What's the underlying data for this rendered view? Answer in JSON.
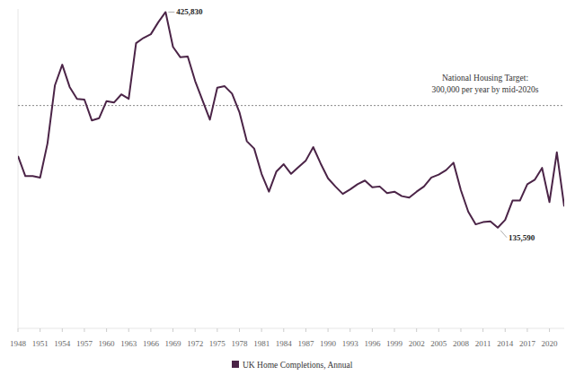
{
  "chart_data": {
    "type": "line",
    "x": [
      1948,
      1949,
      1950,
      1951,
      1952,
      1953,
      1954,
      1955,
      1956,
      1957,
      1958,
      1959,
      1960,
      1961,
      1962,
      1963,
      1964,
      1965,
      1966,
      1967,
      1968,
      1969,
      1970,
      1971,
      1972,
      1973,
      1974,
      1975,
      1976,
      1977,
      1978,
      1979,
      1980,
      1981,
      1982,
      1983,
      1984,
      1985,
      1986,
      1987,
      1988,
      1989,
      1990,
      1991,
      1992,
      1993,
      1994,
      1995,
      1996,
      1997,
      1998,
      1999,
      2000,
      2001,
      2002,
      2003,
      2004,
      2005,
      2006,
      2007,
      2008,
      2009,
      2010,
      2011,
      2012,
      2013,
      2014,
      2015,
      2016,
      2017,
      2018,
      2019,
      2020,
      2021,
      2022
    ],
    "series": [
      {
        "name": "UK Home Completions, Annual",
        "color": "#4b2447",
        "values": [
          232000,
          205000,
          205000,
          203000,
          249000,
          327000,
          355000,
          325000,
          309000,
          308000,
          280000,
          283000,
          306000,
          304000,
          315000,
          309000,
          384000,
          391000,
          396000,
          412000,
          425830,
          379000,
          365000,
          366000,
          333000,
          307000,
          281000,
          324000,
          326000,
          316000,
          291000,
          252000,
          242000,
          208000,
          184000,
          211000,
          221000,
          208000,
          217000,
          226000,
          244000,
          222000,
          202000,
          191000,
          181000,
          187000,
          194000,
          199000,
          190000,
          191000,
          182000,
          184000,
          178000,
          176000,
          184000,
          191000,
          203000,
          207000,
          213000,
          223000,
          186000,
          157000,
          140000,
          143000,
          144000,
          135590,
          146000,
          172000,
          172000,
          194000,
          200000,
          216000,
          170000,
          237000,
          164000
        ]
      }
    ],
    "xlim": [
      1948,
      2022
    ],
    "xticks": [
      1948,
      1951,
      1954,
      1957,
      1960,
      1963,
      1966,
      1969,
      1972,
      1975,
      1978,
      1981,
      1984,
      1987,
      1990,
      1993,
      1996,
      1999,
      2002,
      2005,
      2008,
      2011,
      2014,
      2017,
      2020
    ],
    "ylim": [
      0,
      430000
    ],
    "tick_labels": "x",
    "legend": "bottom",
    "annotations": [
      {
        "x": 1968,
        "y": 425830,
        "label": "425,830"
      },
      {
        "x": 2013,
        "y": 135590,
        "label": "135,590"
      }
    ],
    "reference_line": {
      "value": 300000,
      "text": "National Housing Target:",
      "subtext": "300,000 per year by mid-2020s"
    }
  }
}
